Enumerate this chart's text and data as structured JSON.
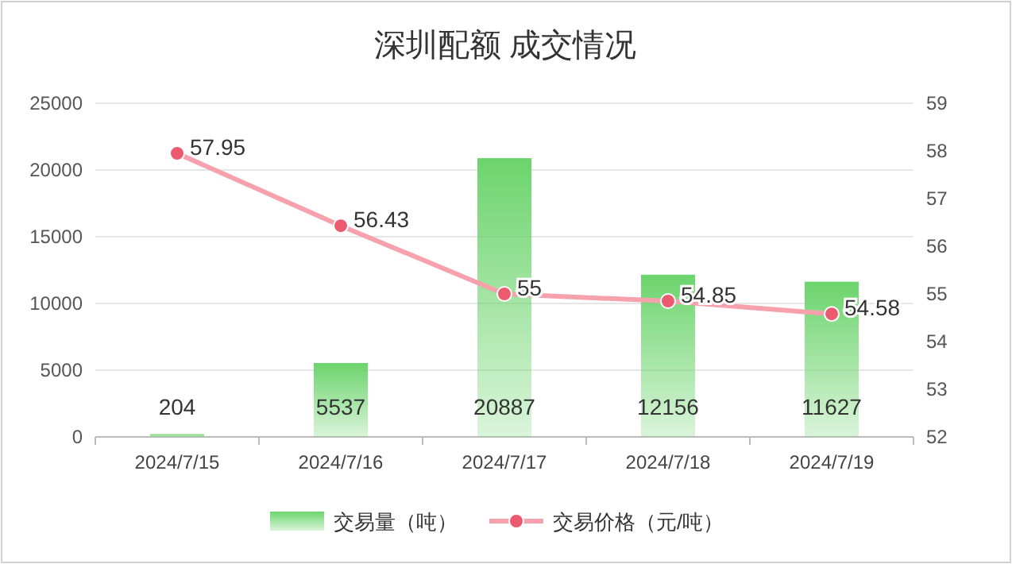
{
  "chart_data": {
    "type": "bar",
    "title": "深圳配额 成交情况",
    "categories": [
      "2024/7/15",
      "2024/7/16",
      "2024/7/17",
      "2024/7/18",
      "2024/7/19"
    ],
    "series": [
      {
        "name": "交易量（吨）",
        "color": "#6cd46c",
        "values": [
          204,
          5537,
          20887,
          12156,
          11627
        ]
      },
      {
        "name": "交易价格（元/吨）",
        "type": "line",
        "axis": "y2",
        "color": "#f7a1ac",
        "values": [
          57.95,
          56.43,
          55,
          54.85,
          54.58
        ]
      }
    ],
    "ylim": [
      0,
      25000
    ],
    "yticks": [
      0,
      5000,
      10000,
      15000,
      20000,
      25000
    ],
    "y2lim": [
      52,
      59
    ],
    "y2ticks": [
      52,
      53,
      54,
      55,
      56,
      57,
      58,
      59
    ],
    "data_labels": true,
    "grid": "y",
    "legend": "bottom",
    "marker": "circle"
  }
}
